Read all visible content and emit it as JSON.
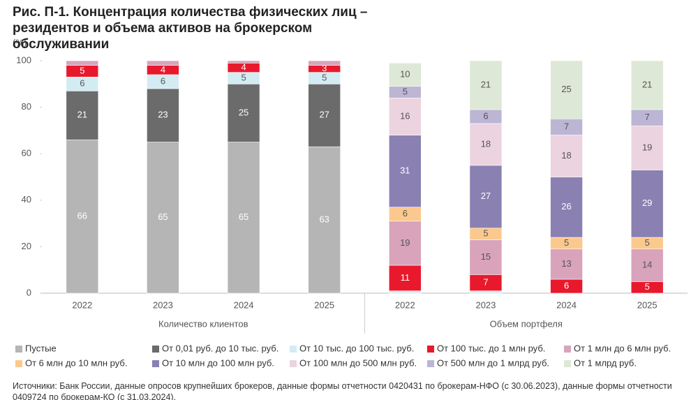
{
  "chart_data": {
    "type": "stacked_bar",
    "title": "Рис. П-1. Концентрация количества физических лиц – резидентов и объема активов на брокерском обслуживании",
    "y_label": "(%)",
    "categories": [
      "2022",
      "2023",
      "2024",
      "2025",
      "2022",
      "2023",
      "2024",
      "2025"
    ],
    "group_labels": [
      "Количество клиентов",
      "Объем портфеля"
    ],
    "ylim": [
      0,
      100
    ],
    "yticks": [
      0,
      20,
      40,
      60,
      80,
      100
    ],
    "series": [
      {
        "name": "Пустые",
        "color": "#b5b5b5",
        "label_color": "#ffffff",
        "values": [
          66,
          65,
          65,
          63,
          null,
          null,
          null,
          null
        ]
      },
      {
        "name": "От 0,01 руб. до 10 тыс. руб.",
        "color": "#6b6b6b",
        "label_color": "#ffffff",
        "values": [
          21,
          23,
          25,
          27,
          null,
          null,
          null,
          null
        ]
      },
      {
        "name": "От 10 тыс. до 100 тыс. руб.",
        "color": "#d3ecf3",
        "label_color": "#555555",
        "values": [
          6,
          6,
          5,
          5,
          1,
          1,
          0,
          0
        ]
      },
      {
        "name": "От 100 тыс. до 1 млн руб.",
        "color": "#e8192c",
        "label_color": "#ffffff",
        "values": [
          5,
          4,
          4,
          3,
          11,
          7,
          6,
          5
        ]
      },
      {
        "name": "От 1 млн до 6 млн руб.",
        "color": "#d9a3bb",
        "label_color": "#555555",
        "values": [
          2,
          2,
          1,
          2,
          19,
          15,
          13,
          14
        ]
      },
      {
        "name": "От 6 млн до 10 млн руб.",
        "color": "#fbc98e",
        "label_color": "#555555",
        "values": [
          null,
          null,
          null,
          null,
          6,
          5,
          5,
          5
        ]
      },
      {
        "name": "От 10 млн до 100 млн руб.",
        "color": "#8a80b2",
        "label_color": "#ffffff",
        "values": [
          null,
          null,
          null,
          null,
          31,
          27,
          26,
          29
        ]
      },
      {
        "name": "От 100 млн до 500 млн руб.",
        "color": "#ecd3e0",
        "label_color": "#555555",
        "values": [
          null,
          null,
          null,
          null,
          16,
          18,
          18,
          19
        ]
      },
      {
        "name": "От 500 млн до 1 млрд руб.",
        "color": "#bcb6d4",
        "label_color": "#555555",
        "values": [
          null,
          null,
          null,
          null,
          5,
          6,
          7,
          7
        ]
      },
      {
        "name": "От 1 млрд руб.",
        "color": "#dde8d6",
        "label_color": "#555555",
        "values": [
          null,
          null,
          null,
          null,
          10,
          21,
          25,
          21
        ]
      }
    ],
    "source": "Источники: Банк России, данные опросов крупнейших брокеров, данные формы отчетности 0420431 по брокерам-НФО (с 30.06.2023), данные формы отчетности 0409724 по брокерам-КО (с 31.03.2024)."
  }
}
